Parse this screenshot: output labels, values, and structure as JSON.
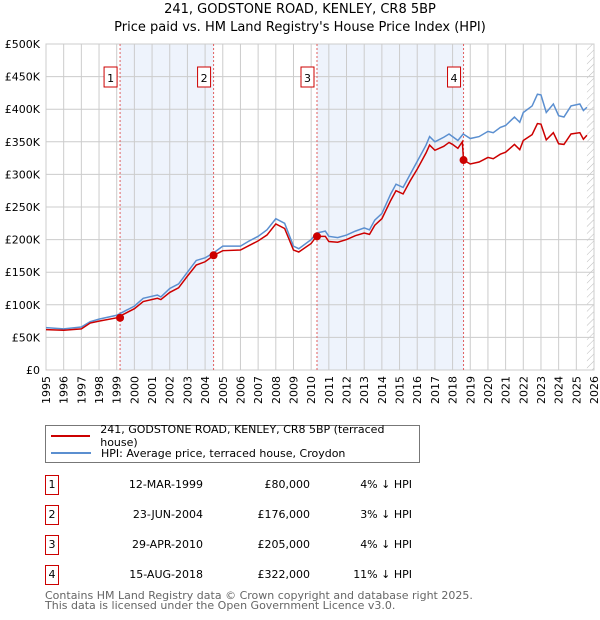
{
  "title": "241, GODSTONE ROAD, KENLEY, CR8 5BP",
  "subtitle": "Price paid vs. HM Land Registry's House Price Index (HPI)",
  "chart_data": {
    "type": "line",
    "xlim": [
      1995,
      2026
    ],
    "ylim": [
      0,
      500000
    ],
    "x_ticks": [
      "1995",
      "1996",
      "1997",
      "1998",
      "1999",
      "2000",
      "2001",
      "2002",
      "2003",
      "2004",
      "2005",
      "2006",
      "2007",
      "2008",
      "2009",
      "2010",
      "2011",
      "2012",
      "2013",
      "2014",
      "2015",
      "2016",
      "2017",
      "2018",
      "2019",
      "2020",
      "2021",
      "2022",
      "2023",
      "2024",
      "2025",
      "2026"
    ],
    "y_ticks": [
      {
        "v": 0,
        "label": "£0"
      },
      {
        "v": 50000,
        "label": "£50K"
      },
      {
        "v": 100000,
        "label": "£100K"
      },
      {
        "v": 150000,
        "label": "£150K"
      },
      {
        "v": 200000,
        "label": "£200K"
      },
      {
        "v": 250000,
        "label": "£250K"
      },
      {
        "v": 300000,
        "label": "£300K"
      },
      {
        "v": 350000,
        "label": "£350K"
      },
      {
        "v": 400000,
        "label": "£400K"
      },
      {
        "v": 450000,
        "label": "£450K"
      },
      {
        "v": 500000,
        "label": "£500K"
      }
    ],
    "series": [
      {
        "name": "241, GODSTONE ROAD, KENLEY, CR8 5BP (terraced house)",
        "color": "#cc0000",
        "x": [
          1995,
          1996,
          1997,
          1997.5,
          1998,
          1999,
          2000,
          2000.5,
          2001.3,
          2001.5,
          2002,
          2002.5,
          2003,
          2003.5,
          2004,
          2004.5,
          2005,
          2006,
          2006.5,
          2007,
          2007.5,
          2008,
          2008.5,
          2009,
          2009.3,
          2010,
          2010.3,
          2010.8,
          2011,
          2011.5,
          2012,
          2012.5,
          2013,
          2013.3,
          2013.6,
          2014,
          2014.5,
          2014.8,
          2015.2,
          2015.6,
          2016,
          2016.5,
          2016.7,
          2017,
          2017.5,
          2017.8,
          2018,
          2018.3,
          2018.55,
          2018.62,
          2019,
          2019.5,
          2020,
          2020.3,
          2020.7,
          2021,
          2021.5,
          2021.8,
          2022,
          2022.5,
          2022.8,
          2023,
          2023.3,
          2023.7,
          2024,
          2024.3,
          2024.7,
          2025.2,
          2025.4,
          2025.6
        ],
        "values": [
          62,
          61,
          63,
          72,
          75,
          80,
          94,
          105,
          110,
          108,
          119,
          126,
          144,
          161,
          166,
          176,
          183,
          184,
          191,
          198,
          207,
          224,
          217,
          184,
          181,
          194,
          205,
          205,
          197,
          196,
          200,
          206,
          210,
          208,
          222,
          232,
          260,
          275,
          270,
          290,
          308,
          333,
          345,
          337,
          343,
          349,
          346,
          340,
          350,
          322,
          316,
          319,
          326,
          324,
          331,
          334,
          346,
          338,
          352,
          361,
          378,
          377,
          353,
          364,
          347,
          346,
          362,
          364,
          354,
          360
        ]
      },
      {
        "name": "HPI: Average price, terraced house, Croydon",
        "color": "#5b8fd0",
        "x": [
          1995,
          1996,
          1997,
          1997.5,
          1998,
          1999,
          2000,
          2000.5,
          2001.3,
          2001.5,
          2002,
          2002.5,
          2003,
          2003.5,
          2004,
          2004.5,
          2005,
          2006,
          2006.5,
          2007,
          2007.5,
          2008,
          2008.5,
          2009,
          2009.3,
          2010,
          2010.3,
          2010.8,
          2011,
          2011.5,
          2012,
          2012.5,
          2013,
          2013.3,
          2013.6,
          2014,
          2014.5,
          2014.8,
          2015.2,
          2015.6,
          2016,
          2016.5,
          2016.7,
          2017,
          2017.5,
          2017.8,
          2018,
          2018.3,
          2018.6,
          2019,
          2019.5,
          2020,
          2020.3,
          2020.7,
          2021,
          2021.5,
          2021.8,
          2022,
          2022.5,
          2022.8,
          2023,
          2023.3,
          2023.7,
          2024,
          2024.3,
          2024.7,
          2025.2,
          2025.4,
          2025.6
        ],
        "values": [
          65,
          63,
          66,
          74,
          78,
          84,
          98,
          110,
          115,
          112,
          125,
          132,
          150,
          168,
          172,
          180,
          190,
          190,
          198,
          205,
          215,
          232,
          225,
          190,
          186,
          200,
          210,
          213,
          205,
          203,
          207,
          213,
          218,
          215,
          230,
          240,
          270,
          285,
          280,
          300,
          320,
          345,
          358,
          350,
          357,
          362,
          358,
          352,
          362,
          355,
          358,
          366,
          364,
          372,
          375,
          388,
          380,
          395,
          405,
          423,
          422,
          395,
          408,
          390,
          388,
          405,
          408,
          398,
          403
        ]
      }
    ],
    "value_unit": "£K",
    "sales": [
      {
        "n": "1",
        "x": 1999.19,
        "value": 80
      },
      {
        "n": "2",
        "x": 2004.48,
        "value": 176
      },
      {
        "n": "3",
        "x": 2010.33,
        "value": 205
      },
      {
        "n": "4",
        "x": 2018.62,
        "value": 322
      }
    ],
    "shaded_ranges": [
      [
        1999.19,
        2004.48
      ],
      [
        2010.33,
        2018.62
      ]
    ],
    "forecast_hatch_from": 2025.6
  },
  "legend": [
    {
      "label": "241, GODSTONE ROAD, KENLEY, CR8 5BP (terraced house)",
      "color": "#cc0000"
    },
    {
      "label": "HPI: Average price, terraced house, Croydon",
      "color": "#5b8fd0"
    }
  ],
  "table": [
    {
      "n": "1",
      "date": "12-MAR-1999",
      "price": "£80,000",
      "hpi": "4% ↓ HPI"
    },
    {
      "n": "2",
      "date": "23-JUN-2004",
      "price": "£176,000",
      "hpi": "3% ↓ HPI"
    },
    {
      "n": "3",
      "date": "29-APR-2010",
      "price": "£205,000",
      "hpi": "4% ↓ HPI"
    },
    {
      "n": "4",
      "date": "15-AUG-2018",
      "price": "£322,000",
      "hpi": "11% ↓ HPI"
    }
  ],
  "footer": [
    "Contains HM Land Registry data © Crown copyright and database right 2025.",
    "This data is licensed under the Open Government Licence v3.0."
  ]
}
